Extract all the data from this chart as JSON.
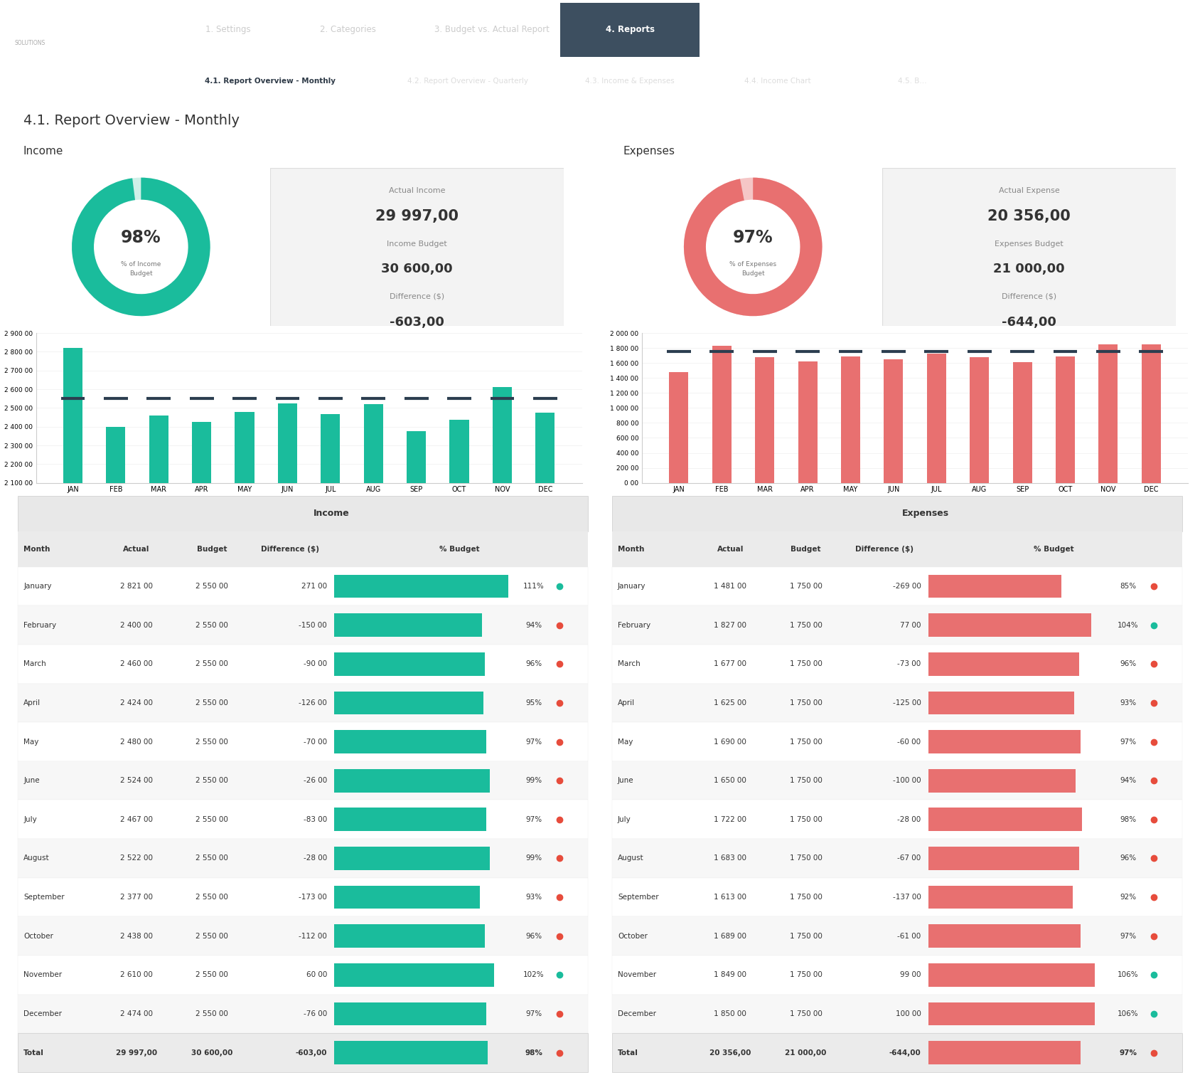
{
  "title": "4.1. Report Overview - Monthly",
  "nav_bg": "#2e3a47",
  "nav_items": [
    "1. Settings",
    "2. Categories",
    "3. Budget vs. Actual Report",
    "4. Reports"
  ],
  "nav_active": "4. Reports",
  "tab_items": [
    "4.1. Report Overview - Monthly",
    "4.2. Report Overview - Quarterly",
    "4.3. Income & Expenses",
    "4.4. Income Chart",
    "4.5. B..."
  ],
  "tab_active": "4.1. Report Overview - Monthly",
  "tab_bg": "#4a5a68",
  "income_pct": 98,
  "income_label": "% of Income\nBudget",
  "income_actual": "29 997,00",
  "income_budget": "30 600,00",
  "income_diff": "-603,00",
  "expenses_pct": 97,
  "expenses_label": "% of Expenses\nBudget",
  "expenses_actual": "20 356,00",
  "expenses_budget": "21 000,00",
  "expenses_diff": "-644,00",
  "months_short": [
    "JAN",
    "FEB",
    "MAR",
    "APR",
    "MAY",
    "JUN",
    "JUL",
    "AUG",
    "SEP",
    "OCT",
    "NOV",
    "DEC"
  ],
  "income_actual_vals": [
    2821,
    2400,
    2460,
    2424,
    2480,
    2524,
    2467,
    2522,
    2377,
    2438,
    2610,
    2474
  ],
  "income_budget_vals": [
    2550,
    2550,
    2550,
    2550,
    2550,
    2550,
    2550,
    2550,
    2550,
    2550,
    2550,
    2550
  ],
  "expenses_actual_vals": [
    1481,
    1827,
    1677,
    1625,
    1690,
    1650,
    1722,
    1683,
    1613,
    1689,
    1849,
    1850
  ],
  "expenses_budget_vals": [
    1750,
    1750,
    1750,
    1750,
    1750,
    1750,
    1750,
    1750,
    1750,
    1750,
    1750,
    1750
  ],
  "income_color": "#1abc9c",
  "expenses_color": "#e87070",
  "budget_line_color": "#2c3e50",
  "donut_bg_income": "#d0f0e8",
  "donut_bg_expenses": "#f5c6c6",
  "income_table": {
    "months": [
      "January",
      "February",
      "March",
      "April",
      "May",
      "June",
      "July",
      "August",
      "September",
      "October",
      "November",
      "December"
    ],
    "actual": [
      2821,
      2400,
      2460,
      2424,
      2480,
      2524,
      2467,
      2522,
      2377,
      2438,
      2610,
      2474
    ],
    "budget": [
      2550,
      2550,
      2550,
      2550,
      2550,
      2550,
      2550,
      2550,
      2550,
      2550,
      2550,
      2550
    ],
    "diff": [
      271,
      -150,
      -90,
      -126,
      -70,
      -26,
      -83,
      -28,
      -173,
      -112,
      60,
      -76
    ],
    "pct": [
      111,
      94,
      96,
      95,
      97,
      99,
      97,
      99,
      93,
      96,
      102,
      97
    ],
    "total_actual": "29 997,00",
    "total_budget": "30 600,00",
    "total_diff": "-603,00",
    "total_pct": 98
  },
  "expenses_table": {
    "months": [
      "January",
      "February",
      "March",
      "April",
      "May",
      "June",
      "July",
      "August",
      "September",
      "October",
      "November",
      "December"
    ],
    "actual": [
      1481,
      1827,
      1677,
      1625,
      1690,
      1650,
      1722,
      1683,
      1613,
      1689,
      1849,
      1850
    ],
    "budget": [
      1750,
      1750,
      1750,
      1750,
      1750,
      1750,
      1750,
      1750,
      1750,
      1750,
      1750,
      1750
    ],
    "diff": [
      -269,
      77,
      -73,
      -125,
      -60,
      -100,
      -28,
      -67,
      -137,
      -61,
      99,
      100
    ],
    "pct": [
      85,
      104,
      96,
      93,
      97,
      94,
      98,
      96,
      92,
      97,
      106,
      106
    ],
    "total_actual": "20 356,00",
    "total_budget": "21 000,00",
    "total_diff": "-644,00",
    "total_pct": 97
  },
  "dot_color_green": "#1abc9c",
  "dot_color_red": "#e74c3c"
}
